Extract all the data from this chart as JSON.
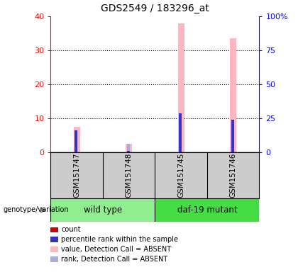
{
  "title": "GDS2549 / 183296_at",
  "samples": [
    "GSM151747",
    "GSM151748",
    "GSM151745",
    "GSM151746"
  ],
  "bar_positions": [
    1,
    2,
    3,
    4
  ],
  "value_absent": [
    7.5,
    2.5,
    38.0,
    33.5
  ],
  "rank_absent": [
    6.5,
    2.5,
    11.5,
    9.5
  ],
  "percentile_rank": [
    6.5,
    0.5,
    11.5,
    9.5
  ],
  "count_values": [
    0,
    0,
    0,
    0
  ],
  "left_ylim": [
    0,
    40
  ],
  "right_ylim": [
    0,
    100
  ],
  "left_yticks": [
    0,
    10,
    20,
    30,
    40
  ],
  "right_yticks": [
    0,
    25,
    50,
    75,
    100
  ],
  "right_yticklabels": [
    "0",
    "25",
    "50",
    "75",
    "100%"
  ],
  "color_count": "#cc0000",
  "color_rank": "#3333cc",
  "color_value_absent": "#FFB6C1",
  "color_rank_absent": "#AAAADD",
  "bg_color_sample": "#cccccc",
  "wt_color": "#90EE90",
  "daf_color": "#44DD44",
  "legend_items": [
    {
      "label": "count",
      "color": "#cc0000"
    },
    {
      "label": "percentile rank within the sample",
      "color": "#3333cc"
    },
    {
      "label": "value, Detection Call = ABSENT",
      "color": "#FFB6C1"
    },
    {
      "label": "rank, Detection Call = ABSENT",
      "color": "#AAAADD"
    }
  ],
  "pink_bar_width": 0.12,
  "blue_bar_width": 0.06,
  "xlim": [
    0.5,
    4.5
  ]
}
